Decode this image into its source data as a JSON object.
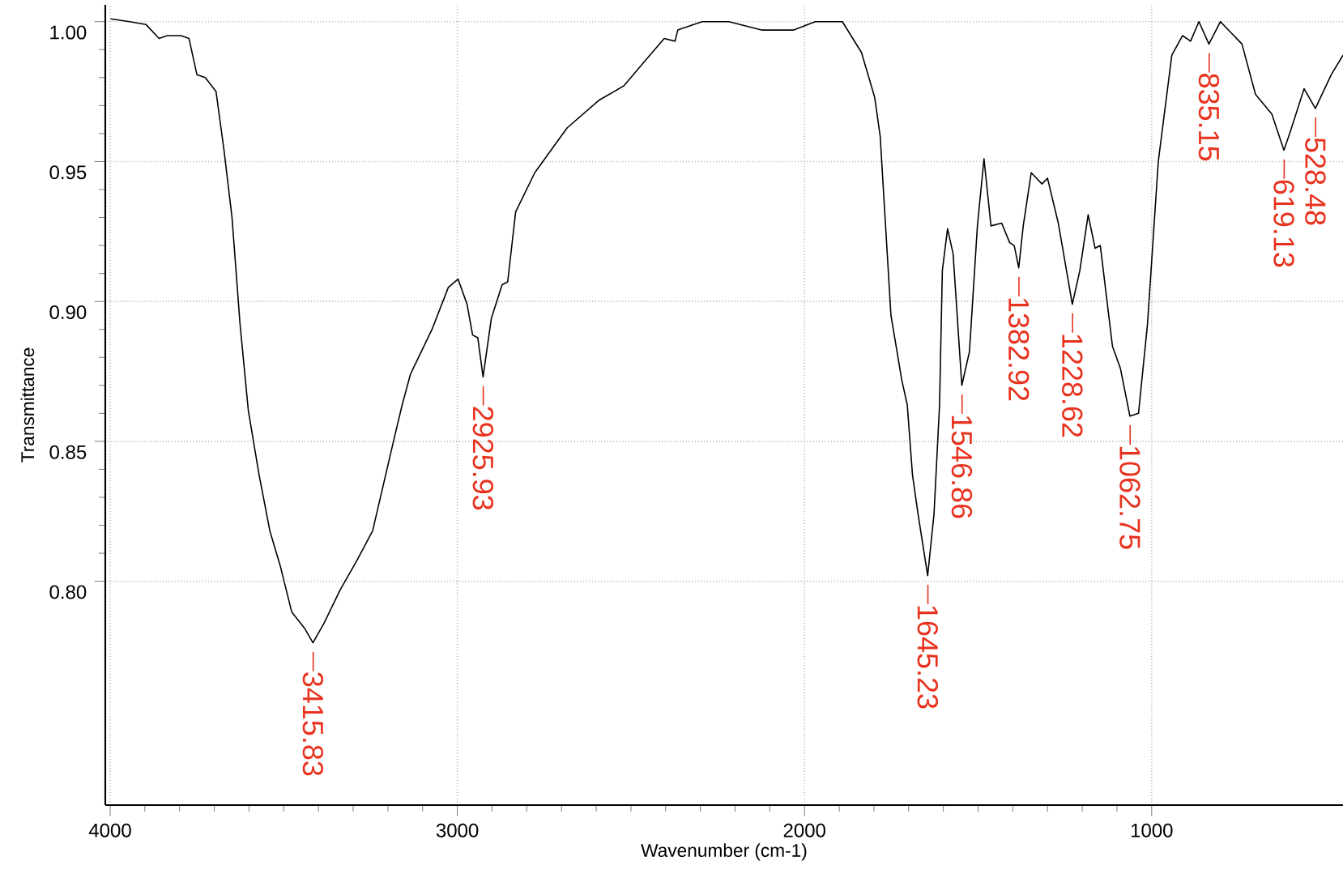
{
  "chart_data": {
    "type": "line",
    "xlabel": "Wavenumber (cm-1)",
    "ylabel": "Transmittance",
    "xlim": [
      4014,
      449
    ],
    "ylim": [
      0.72,
      1.006
    ],
    "xticks": [
      4000,
      3000,
      2000,
      1000
    ],
    "yticks": [
      {
        "value": 0.8,
        "label": "0.80"
      },
      {
        "value": 0.85,
        "label": "0.85"
      },
      {
        "value": 0.9,
        "label": "0.90"
      },
      {
        "value": 0.95,
        "label": "0.95"
      },
      {
        "value": 1.0,
        "label": "1.00"
      }
    ],
    "grid": true,
    "marker": "none",
    "line_style": "solid",
    "series": [
      {
        "color": "#000000",
        "x": [
          3999,
          3944,
          3897,
          3859,
          3836,
          3796,
          3773,
          3750,
          3726,
          3695,
          3672,
          3649,
          3626,
          3602,
          3571,
          3540,
          3509,
          3477,
          3439,
          3415.83,
          3384,
          3337,
          3291,
          3244,
          3182,
          3159,
          3135,
          3073,
          3026,
          2998,
          2972,
          2956,
          2941,
          2925.93,
          2902,
          2871,
          2855,
          2832,
          2777,
          2684,
          2591,
          2521,
          2466,
          2404,
          2373,
          2365,
          2295,
          2218,
          2124,
          2031,
          1969,
          1891,
          1836,
          1798,
          1782,
          1751,
          1720,
          1704,
          1689,
          1673,
          1645.23,
          1627,
          1611,
          1603,
          1588,
          1572,
          1546.86,
          1525,
          1502,
          1483,
          1463,
          1432,
          1409,
          1396,
          1382.92,
          1370,
          1347,
          1316,
          1300,
          1269,
          1228.62,
          1207,
          1183,
          1163,
          1148,
          1113,
          1090,
          1062.75,
          1038,
          1012,
          981,
          942,
          911,
          888,
          864,
          835.15,
          802,
          740,
          701,
          654,
          619.13,
          600,
          561,
          528.48,
          483,
          449
        ],
        "values": [
          1.001,
          1.0,
          0.999,
          0.994,
          0.995,
          0.995,
          0.994,
          0.981,
          0.98,
          0.975,
          0.954,
          0.93,
          0.892,
          0.861,
          0.838,
          0.818,
          0.805,
          0.789,
          0.783,
          0.778,
          0.785,
          0.797,
          0.807,
          0.818,
          0.851,
          0.863,
          0.874,
          0.89,
          0.905,
          0.908,
          0.899,
          0.888,
          0.887,
          0.873,
          0.894,
          0.906,
          0.907,
          0.932,
          0.946,
          0.962,
          0.972,
          0.977,
          0.985,
          0.994,
          0.993,
          0.997,
          1.0,
          1.0,
          0.997,
          0.997,
          1.0,
          1.0,
          0.989,
          0.973,
          0.959,
          0.895,
          0.872,
          0.863,
          0.838,
          0.824,
          0.802,
          0.824,
          0.863,
          0.911,
          0.926,
          0.917,
          0.87,
          0.882,
          0.927,
          0.951,
          0.927,
          0.928,
          0.921,
          0.92,
          0.912,
          0.927,
          0.946,
          0.942,
          0.944,
          0.928,
          0.899,
          0.911,
          0.931,
          0.919,
          0.92,
          0.884,
          0.876,
          0.859,
          0.86,
          0.892,
          0.95,
          0.988,
          0.995,
          0.993,
          1.0,
          0.992,
          1.0,
          0.992,
          0.974,
          0.967,
          0.954,
          0.961,
          0.976,
          0.969,
          0.981,
          0.988
        ]
      }
    ],
    "annotations": [
      {
        "text": "3415.83",
        "x": 3415.83,
        "y": 0.778
      },
      {
        "text": "2925.93",
        "x": 2925.93,
        "y": 0.873
      },
      {
        "text": "1645.23",
        "x": 1645.23,
        "y": 0.802
      },
      {
        "text": "1546.86",
        "x": 1546.86,
        "y": 0.87
      },
      {
        "text": "1382.92",
        "x": 1382.92,
        "y": 0.912
      },
      {
        "text": "1228.62",
        "x": 1228.62,
        "y": 0.899
      },
      {
        "text": "1062.75",
        "x": 1062.75,
        "y": 0.859
      },
      {
        "text": "835.15",
        "x": 835.15,
        "y": 0.992
      },
      {
        "text": "619.13",
        "x": 619.13,
        "y": 0.954
      },
      {
        "text": "528.48",
        "x": 528.48,
        "y": 0.969
      }
    ]
  }
}
